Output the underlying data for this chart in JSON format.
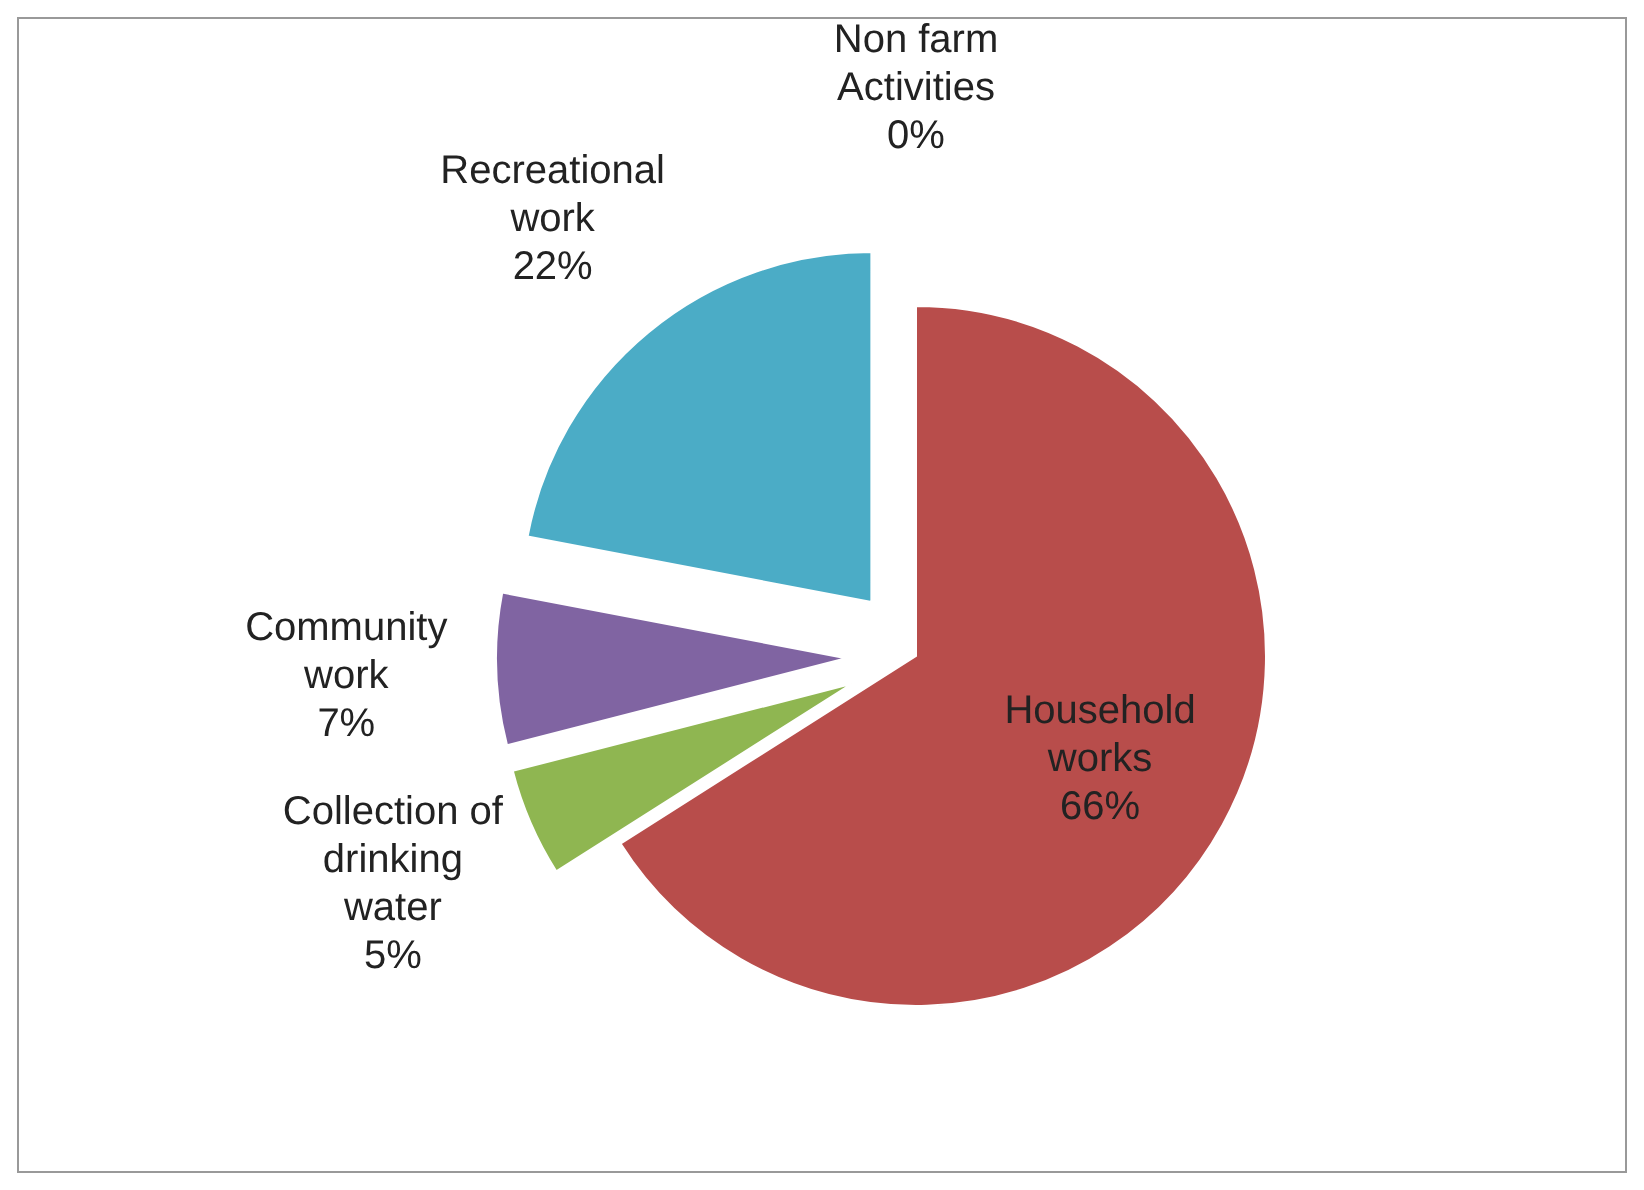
{
  "chart_data": {
    "type": "pie",
    "categories": [
      "Household works",
      "Collection of drinking water",
      "Community work",
      "Recreational work",
      "Non farm Activities"
    ],
    "values": [
      66,
      5,
      7,
      22,
      0
    ],
    "colors": [
      "#b84d4b",
      "#8fb651",
      "#8064a2",
      "#4bacc6",
      "#f79646"
    ],
    "value_labels": [
      "66%",
      "5%",
      "7%",
      "22%",
      "0%"
    ]
  }
}
